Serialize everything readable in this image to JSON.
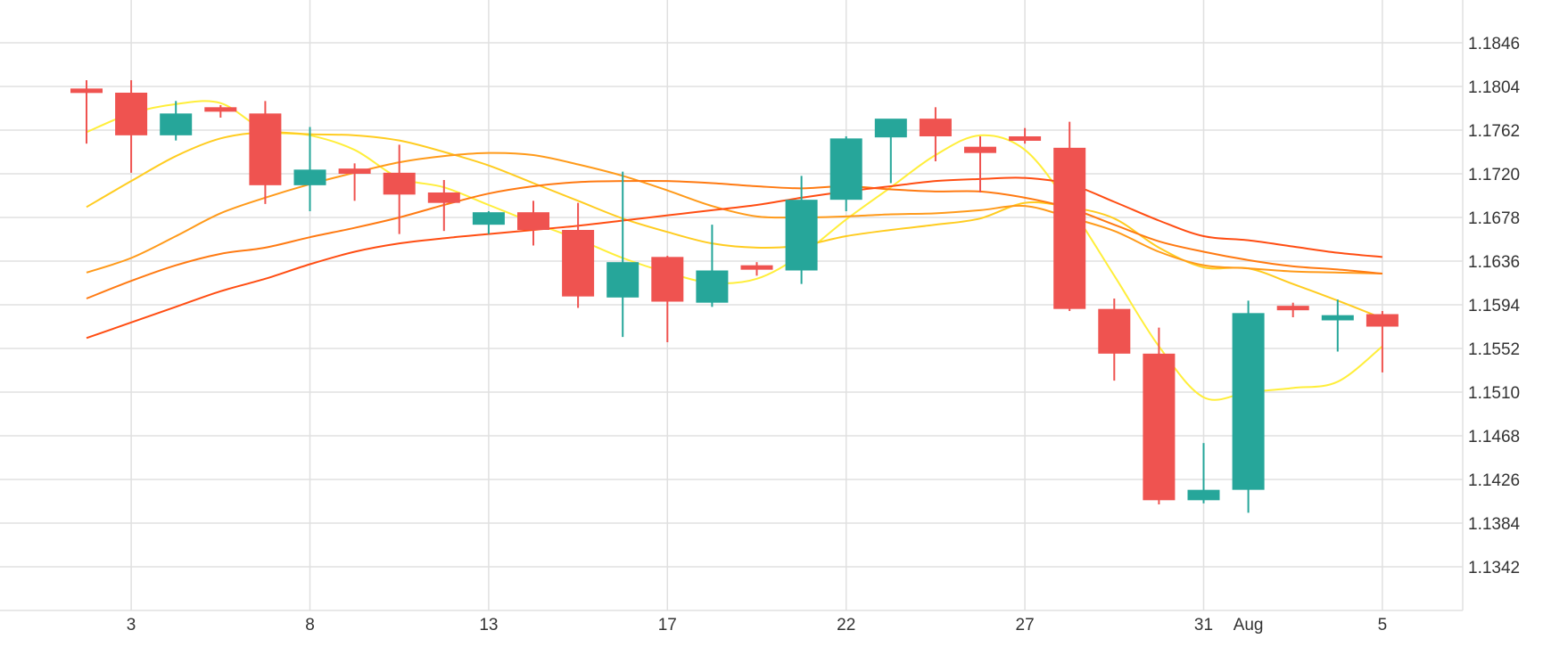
{
  "chart_data": {
    "type": "candlestick",
    "title": "",
    "xlabel": "",
    "ylabel": "",
    "ylim": [
      1.13,
      1.19
    ],
    "y_ticks": [
      "1.1846",
      "1.1804",
      "1.1762",
      "1.1720",
      "1.1678",
      "1.1636",
      "1.1594",
      "1.1552",
      "1.1510",
      "1.1468",
      "1.1426",
      "1.1384",
      "1.1342"
    ],
    "x_tick_labels": [
      "3",
      "8",
      "13",
      "17",
      "22",
      "27",
      "31",
      "Aug",
      "5"
    ],
    "x_tick_index": [
      1,
      5,
      9,
      13,
      17,
      21,
      25,
      26,
      29
    ],
    "grid": true,
    "colors": {
      "up": "#26a69a",
      "down": "#ef5350",
      "grid": "#e0e0e0"
    },
    "candles": [
      {
        "open": 1.1802,
        "high": 1.181,
        "low": 1.1749,
        "close": 1.18
      },
      {
        "open": 1.1798,
        "high": 1.181,
        "low": 1.1721,
        "close": 1.1757
      },
      {
        "open": 1.1757,
        "high": 1.179,
        "low": 1.1752,
        "close": 1.1778
      },
      {
        "open": 1.1784,
        "high": 1.1786,
        "low": 1.1774,
        "close": 1.178
      },
      {
        "open": 1.1778,
        "high": 1.179,
        "low": 1.1691,
        "close": 1.1709
      },
      {
        "open": 1.1709,
        "high": 1.1765,
        "low": 1.1684,
        "close": 1.1724
      },
      {
        "open": 1.1725,
        "high": 1.173,
        "low": 1.1694,
        "close": 1.172
      },
      {
        "open": 1.1721,
        "high": 1.1748,
        "low": 1.1662,
        "close": 1.17
      },
      {
        "open": 1.1702,
        "high": 1.1714,
        "low": 1.1665,
        "close": 1.1692
      },
      {
        "open": 1.1671,
        "high": 1.1684,
        "low": 1.1662,
        "close": 1.1683
      },
      {
        "open": 1.1683,
        "high": 1.1694,
        "low": 1.1651,
        "close": 1.1666
      },
      {
        "open": 1.1666,
        "high": 1.1692,
        "low": 1.1591,
        "close": 1.1602
      },
      {
        "open": 1.1601,
        "high": 1.1722,
        "low": 1.1563,
        "close": 1.1635
      },
      {
        "open": 1.164,
        "high": 1.1641,
        "low": 1.1558,
        "close": 1.1597
      },
      {
        "open": 1.1596,
        "high": 1.1671,
        "low": 1.1592,
        "close": 1.1627
      },
      {
        "open": 1.1632,
        "high": 1.1635,
        "low": 1.1622,
        "close": 1.1628
      },
      {
        "open": 1.1627,
        "high": 1.1718,
        "low": 1.1614,
        "close": 1.1695
      },
      {
        "open": 1.1695,
        "high": 1.1756,
        "low": 1.1684,
        "close": 1.1754
      },
      {
        "open": 1.1755,
        "high": 1.1772,
        "low": 1.1711,
        "close": 1.1773
      },
      {
        "open": 1.1773,
        "high": 1.1784,
        "low": 1.1732,
        "close": 1.1756
      },
      {
        "open": 1.1746,
        "high": 1.1756,
        "low": 1.1702,
        "close": 1.174
      },
      {
        "open": 1.1756,
        "high": 1.1764,
        "low": 1.1749,
        "close": 1.1753
      },
      {
        "open": 1.1745,
        "high": 1.177,
        "low": 1.1588,
        "close": 1.159
      },
      {
        "open": 1.159,
        "high": 1.16,
        "low": 1.1521,
        "close": 1.1547
      },
      {
        "open": 1.1547,
        "high": 1.1572,
        "low": 1.1402,
        "close": 1.1406
      },
      {
        "open": 1.1406,
        "high": 1.1461,
        "low": 1.1403,
        "close": 1.1416
      },
      {
        "open": 1.1416,
        "high": 1.1598,
        "low": 1.1394,
        "close": 1.1586
      },
      {
        "open": 1.1593,
        "high": 1.1596,
        "low": 1.1582,
        "close": 1.159
      },
      {
        "open": 1.1579,
        "high": 1.1599,
        "low": 1.1549,
        "close": 1.1584
      },
      {
        "open": 1.1585,
        "high": 1.1588,
        "low": 1.1529,
        "close": 1.1573
      }
    ],
    "series": [
      {
        "color": "#ffee3a",
        "values": [
          1.176,
          1.1778,
          1.1787,
          1.1788,
          1.1762,
          1.1757,
          1.1743,
          1.1716,
          1.1707,
          1.169,
          1.1673,
          1.1657,
          1.1639,
          1.1625,
          1.1615,
          1.1619,
          1.1642,
          1.1676,
          1.1707,
          1.1738,
          1.1757,
          1.1743,
          1.1689,
          1.1622,
          1.1554,
          1.1505,
          1.151,
          1.1514,
          1.152,
          1.1554
        ]
      },
      {
        "color": "#ffcc20",
        "values": [
          1.1688,
          1.1713,
          1.1737,
          1.1754,
          1.176,
          1.1758,
          1.1757,
          1.1752,
          1.1741,
          1.1728,
          1.1711,
          1.1694,
          1.1677,
          1.1664,
          1.1653,
          1.1649,
          1.1651,
          1.166,
          1.1666,
          1.1671,
          1.1677,
          1.1692,
          1.1688,
          1.1677,
          1.1649,
          1.163,
          1.1629,
          1.1614,
          1.1598,
          1.1581
        ]
      },
      {
        "color": "#ff9a1a",
        "values": [
          1.1625,
          1.1639,
          1.166,
          1.1682,
          1.1697,
          1.171,
          1.1721,
          1.1731,
          1.1737,
          1.174,
          1.1738,
          1.1729,
          1.1718,
          1.1704,
          1.1689,
          1.1679,
          1.1678,
          1.1679,
          1.1681,
          1.1682,
          1.1685,
          1.1689,
          1.1678,
          1.1665,
          1.1645,
          1.1632,
          1.1629,
          1.1626,
          1.1625,
          1.1624
        ]
      },
      {
        "color": "#ff7a12",
        "values": [
          1.16,
          1.1617,
          1.1632,
          1.1643,
          1.1649,
          1.1659,
          1.1668,
          1.1678,
          1.169,
          1.1701,
          1.1708,
          1.1712,
          1.1713,
          1.1713,
          1.1711,
          1.1708,
          1.1706,
          1.1708,
          1.1705,
          1.1703,
          1.1703,
          1.1697,
          1.1687,
          1.1671,
          1.1655,
          1.1645,
          1.1637,
          1.1631,
          1.1628,
          1.1624
        ]
      },
      {
        "color": "#ff4d12",
        "values": [
          1.1562,
          1.1577,
          1.1592,
          1.1607,
          1.1619,
          1.1633,
          1.1645,
          1.1653,
          1.1658,
          1.1662,
          1.1666,
          1.167,
          1.1675,
          1.168,
          1.1685,
          1.169,
          1.1697,
          1.1703,
          1.1708,
          1.1713,
          1.1715,
          1.1716,
          1.171,
          1.1693,
          1.1675,
          1.166,
          1.1656,
          1.165,
          1.1644,
          1.164
        ]
      }
    ]
  }
}
